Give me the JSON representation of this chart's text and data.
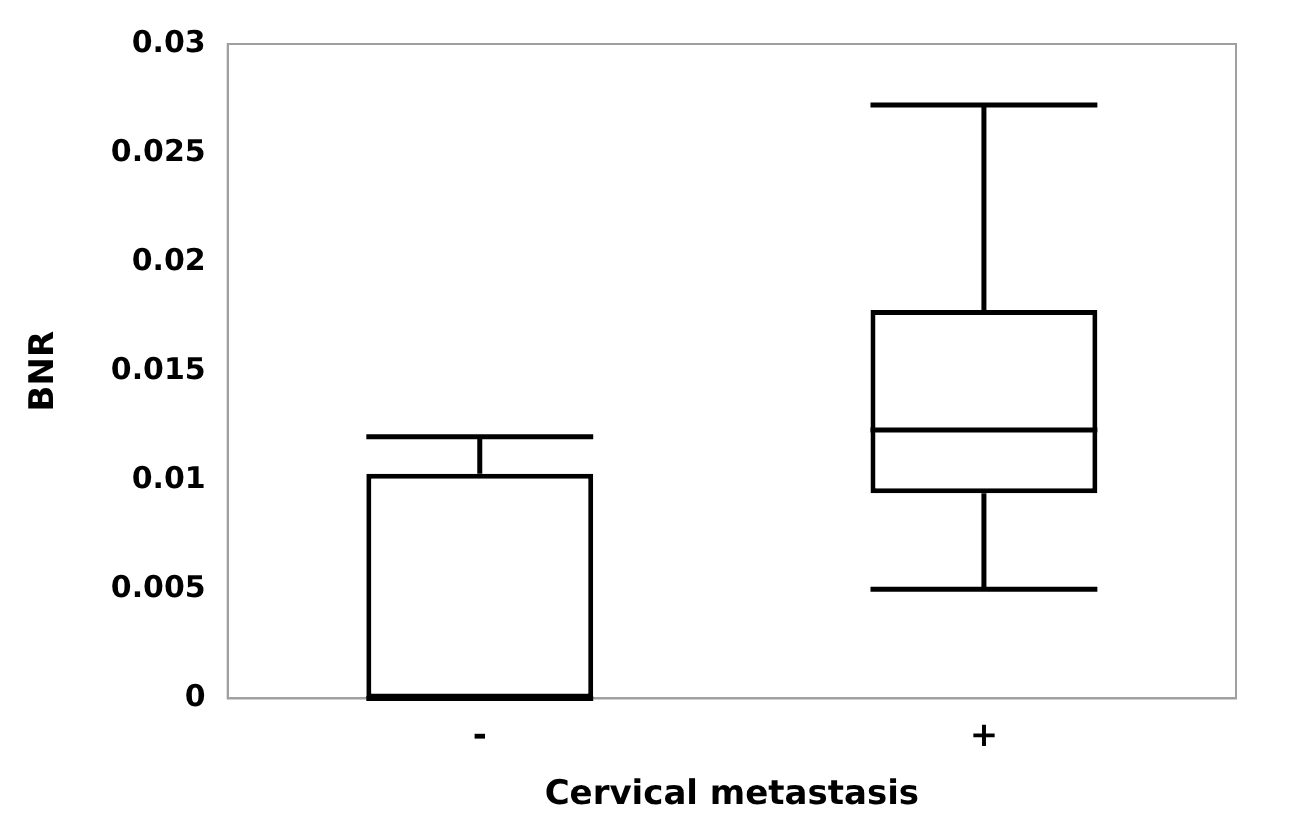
{
  "chart_data": {
    "type": "box",
    "xlabel": "Cervical metastasis",
    "ylabel": "BNR",
    "categories": [
      "-",
      "+"
    ],
    "boxes": [
      {
        "low": 0,
        "q1": 0,
        "median": 0,
        "q3": 0.0103,
        "high": 0.012
      },
      {
        "low": 0.005,
        "q1": 0.0094,
        "median": 0.0123,
        "q3": 0.0178,
        "high": 0.0272
      }
    ],
    "ylim": [
      0,
      0.03
    ],
    "yticks": [
      0,
      0.005,
      0.01,
      0.015,
      0.02,
      0.025,
      0.03
    ],
    "grid": false,
    "legend": false
  }
}
